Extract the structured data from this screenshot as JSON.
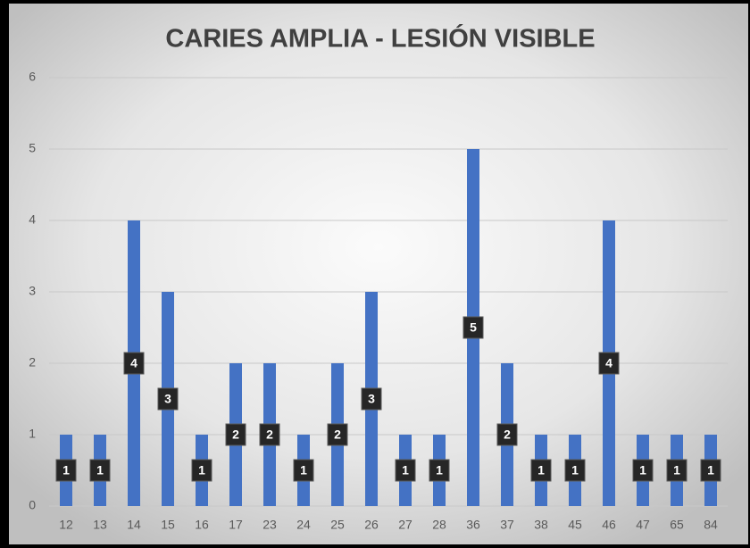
{
  "chart_data": {
    "type": "bar",
    "title": "CARIES AMPLIA - LESIÓN VISIBLE",
    "categories": [
      "12",
      "13",
      "14",
      "15",
      "16",
      "17",
      "23",
      "24",
      "25",
      "26",
      "27",
      "28",
      "36",
      "37",
      "38",
      "45",
      "46",
      "47",
      "65",
      "84"
    ],
    "values": [
      1,
      1,
      4,
      3,
      1,
      2,
      2,
      1,
      2,
      3,
      1,
      1,
      5,
      2,
      1,
      1,
      4,
      1,
      1,
      1
    ],
    "color": "#4472c4",
    "ylim": [
      0,
      6
    ],
    "yticks": [
      0,
      1,
      2,
      3,
      4,
      5,
      6
    ],
    "grid": true
  }
}
